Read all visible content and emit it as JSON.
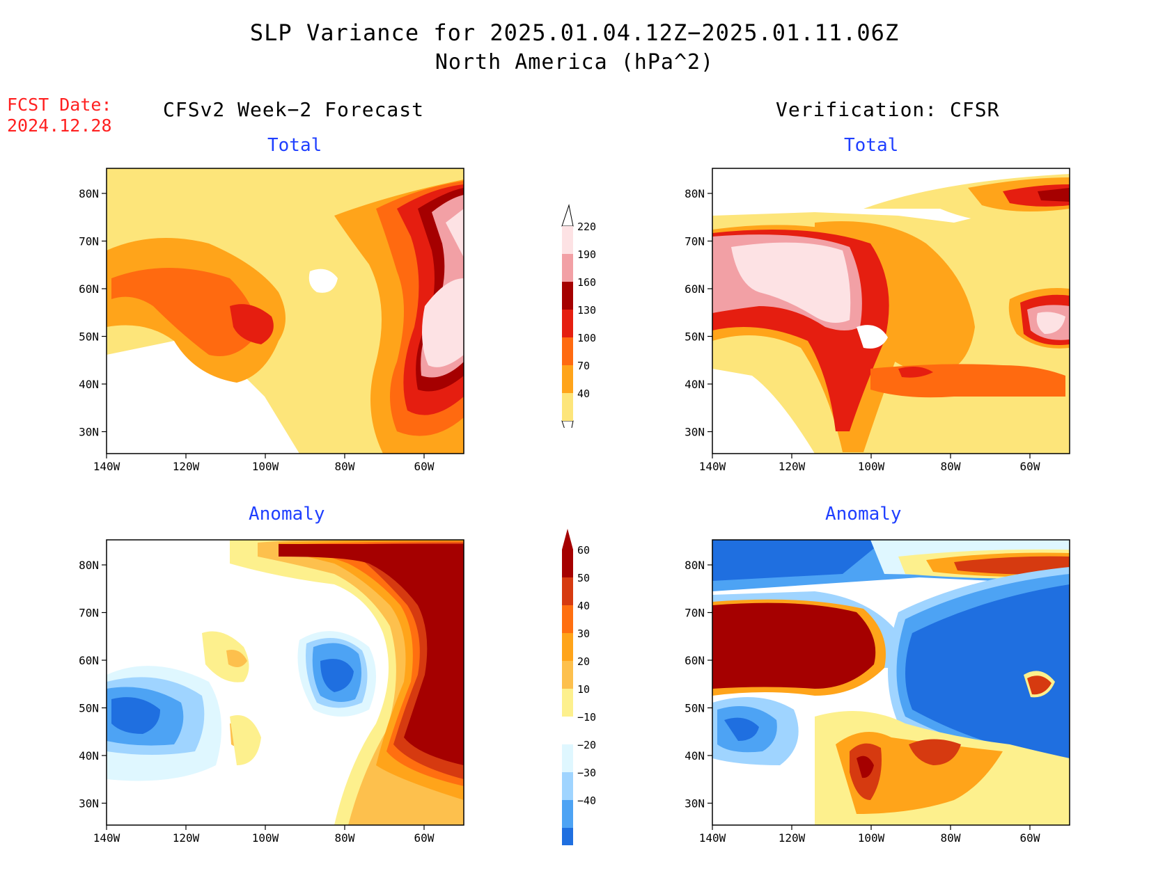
{
  "title": "SLP Variance for 2025.01.04.12Z−2025.01.11.06Z",
  "subtitle": "North America (hPa^2)",
  "fcst_date_label": "FCST Date:",
  "fcst_date_value": "2024.12.28",
  "columns": {
    "forecast": "CFSv2 Week−2 Forecast",
    "verification": "Verification: CFSR"
  },
  "panels": {
    "fc_total": "Total",
    "ver_total": "Total",
    "fc_anom": "Anomaly",
    "ver_anom": "Anomaly"
  },
  "axes": {
    "lat_labels": [
      "80N",
      "70N",
      "60N",
      "50N",
      "40N",
      "30N"
    ],
    "lon_labels": [
      "140W",
      "120W",
      "100W",
      "80W",
      "60W"
    ]
  },
  "colorbars": {
    "total": {
      "levels": [
        "40",
        "70",
        "100",
        "130",
        "160",
        "190",
        "220"
      ],
      "colors": [
        "#fde57a",
        "#ffa41a",
        "#ff6a10",
        "#e51e10",
        "#a50000",
        "#f2a0a5",
        "#fde2e4"
      ]
    },
    "anomaly": {
      "levels": [
        "60",
        "50",
        "40",
        "30",
        "20",
        "10",
        "−10",
        "−20",
        "−30",
        "−40"
      ],
      "colors": [
        "#a50000",
        "#d63a10",
        "#ff6f10",
        "#ffa41a",
        "#fdc04d",
        "#fdf08d",
        "#ffffff",
        "#dff7ff",
        "#9fd4ff",
        "#4da3f4",
        "#1f6fe0"
      ]
    }
  },
  "colors": {
    "panel_title": "#1f3fff",
    "fcst_date": "#ff2020"
  }
}
